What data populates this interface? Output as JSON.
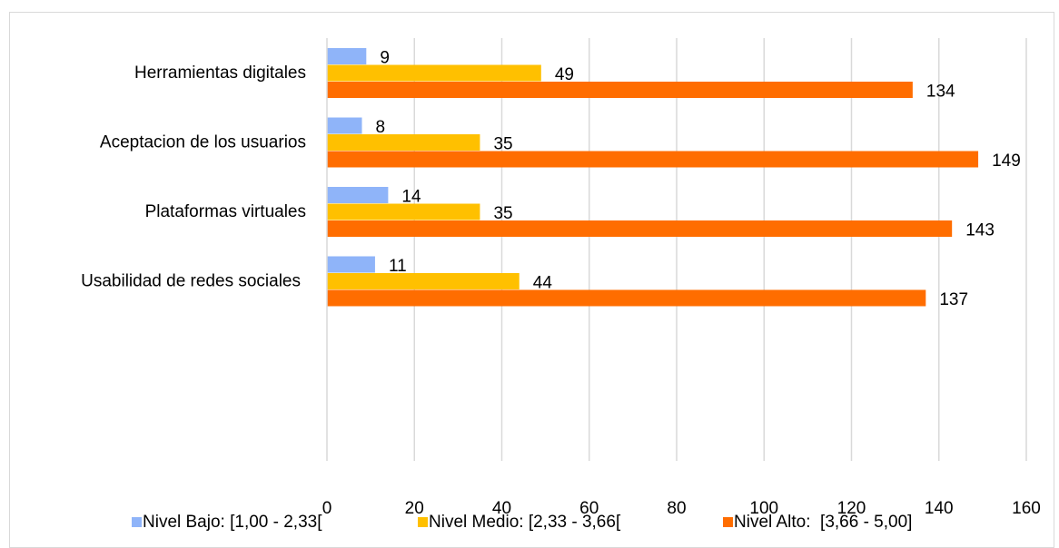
{
  "chart_data": {
    "type": "bar",
    "orientation": "horizontal",
    "categories": [
      "Herramientas digitales",
      "Aceptacion de los usuarios",
      "Plataformas virtuales",
      "Usabilidad de redes sociales"
    ],
    "series": [
      {
        "name": "Nivel Bajo: [1,00 - 2,33[",
        "color": "#8FB4F9",
        "values": [
          9,
          8,
          14,
          11
        ]
      },
      {
        "name": "Nivel Medio: [2,33 - 3,66[",
        "color": "#FFC000",
        "values": [
          49,
          35,
          35,
          44
        ]
      },
      {
        "name": "Nivel Alto:  [3,66 - 5,00]",
        "color": "#FF6D00",
        "values": [
          134,
          149,
          143,
          137
        ]
      }
    ],
    "xlim": [
      0,
      160
    ],
    "xticks": [
      "0",
      "20",
      "40",
      "60",
      "80",
      "100",
      "120",
      "140",
      "160"
    ],
    "grid": true,
    "legend_position": "bottom",
    "title": "",
    "xlabel": "",
    "ylabel": ""
  }
}
